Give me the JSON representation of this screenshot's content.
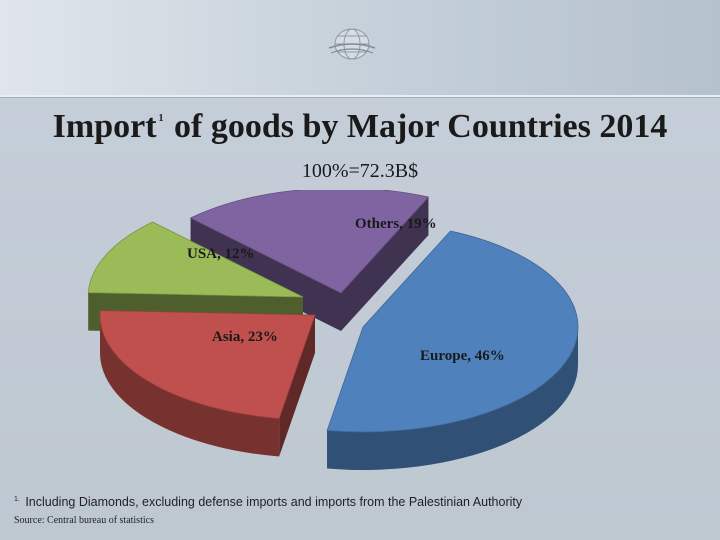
{
  "title": {
    "main": "Import",
    "footnote_mark": "1",
    "rest": " of goods by Major Countries 2014"
  },
  "subtitle": "100%=72.3B$",
  "chart_data": {
    "type": "pie",
    "title": "Import of goods by Major Countries 2014",
    "subtitle": "100%=72.3B$",
    "slices": [
      {
        "label": "Europe, 46%",
        "name": "Europe",
        "value": 46,
        "color": "#4f81bd"
      },
      {
        "label": "Asia, 23%",
        "name": "Asia",
        "value": 23,
        "color": "#c0504d"
      },
      {
        "label": "USA, 12%",
        "name": "USA",
        "value": 12,
        "color": "#9bbb59"
      },
      {
        "label": "Others, 19%",
        "name": "Others",
        "value": 19,
        "color": "#8064a2"
      }
    ],
    "exploded": true,
    "style": "3d"
  },
  "footnote": {
    "mark": "1.",
    "text": " Including Diamonds, excluding defense imports and imports from the Palestinian Authority"
  },
  "source": "Source: Central bureau of statistics",
  "colors": {
    "background": "#c3ccd6",
    "europe": "#4f81bd",
    "asia": "#c0504d",
    "usa": "#9bbb59",
    "others": "#8064a2"
  },
  "icons": {
    "logo": "globe-logo-icon"
  }
}
